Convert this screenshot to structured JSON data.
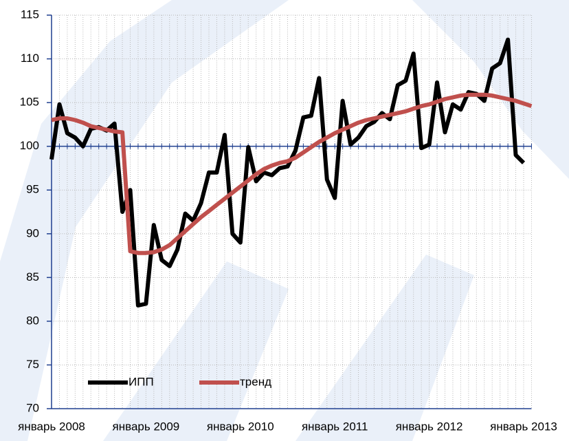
{
  "chart_data": {
    "type": "line",
    "categories": [
      "январь 2008",
      null,
      null,
      null,
      null,
      null,
      null,
      null,
      null,
      null,
      null,
      null,
      "январь 2009",
      null,
      null,
      null,
      null,
      null,
      null,
      null,
      null,
      null,
      null,
      null,
      "январь 2010",
      null,
      null,
      null,
      null,
      null,
      null,
      null,
      null,
      null,
      null,
      null,
      "январь 2011",
      null,
      null,
      null,
      null,
      null,
      null,
      null,
      null,
      null,
      null,
      null,
      "январь 2012",
      null,
      null,
      null,
      null,
      null,
      null,
      null,
      null,
      null,
      null,
      null,
      "январь 2013",
      null
    ],
    "series": [
      {
        "name": "ИПП",
        "color": "#000000",
        "values": [
          98.5,
          104.8,
          101.5,
          101,
          100,
          102,
          102.2,
          101.8,
          102.6,
          92.5,
          95,
          81.8,
          82,
          91,
          87,
          86.3,
          88.2,
          92.3,
          91.5,
          93.5,
          97,
          97,
          101.3,
          90,
          89,
          99.9,
          96,
          97,
          96.7,
          97.5,
          97.7,
          99.5,
          103.3,
          103.5,
          107.8,
          96.2,
          94.1,
          105.2,
          100.2,
          101,
          102.3,
          102.8,
          103.8,
          103.1,
          107,
          107.5,
          110.6,
          99.8,
          100.2,
          107.3,
          101.6,
          104.8,
          104.2,
          106.2,
          106,
          105.2,
          108.9,
          109.5,
          112.2,
          99,
          98.1,
          null
        ]
      },
      {
        "name": "тренд",
        "color": "#c0504d",
        "values": [
          103,
          103.2,
          103.2,
          103,
          102.7,
          102.3,
          102.1,
          101.9,
          101.7,
          101.6,
          88,
          87.8,
          87.8,
          87.9,
          88.2,
          88.7,
          89.5,
          90.3,
          91.1,
          91.9,
          92.6,
          93.3,
          94,
          94.7,
          95.4,
          96.1,
          96.8,
          97.4,
          97.8,
          98.1,
          98.3,
          98.7,
          99.3,
          99.9,
          100.5,
          101,
          101.5,
          101.9,
          102.3,
          102.7,
          103,
          103.2,
          103.4,
          103.6,
          103.8,
          104,
          104.3,
          104.6,
          104.8,
          105.1,
          105.4,
          105.6,
          105.8,
          105.9,
          105.9,
          105.9,
          105.8,
          105.6,
          105.4,
          105.2,
          104.9,
          104.6
        ]
      }
    ],
    "ylim": [
      70,
      115
    ],
    "yticks": [
      70,
      75,
      80,
      85,
      90,
      95,
      100,
      105,
      110,
      115
    ],
    "reference_line": 100,
    "grid": true,
    "legend": "lower left"
  }
}
